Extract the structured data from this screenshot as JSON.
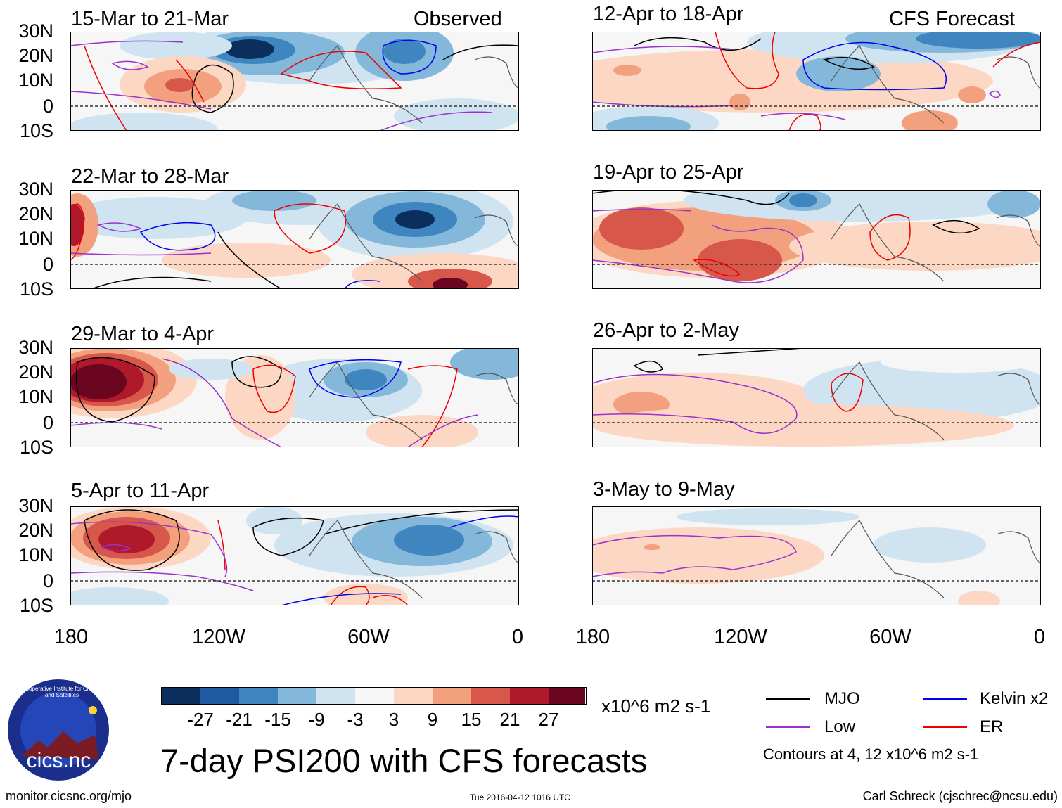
{
  "panels": [
    {
      "title": "15-Mar to 21-Mar",
      "label": "Observed"
    },
    {
      "title": "12-Apr to 18-Apr",
      "label": "CFS Forecast"
    },
    {
      "title": "22-Mar to 28-Mar",
      "label": ""
    },
    {
      "title": "19-Apr to 25-Apr",
      "label": ""
    },
    {
      "title": "29-Mar to 4-Apr",
      "label": ""
    },
    {
      "title": "26-Apr to 2-May",
      "label": ""
    },
    {
      "title": "5-Apr to 11-Apr",
      "label": ""
    },
    {
      "title": "3-May to 9-May",
      "label": ""
    }
  ],
  "lat_labels": [
    "30N",
    "20N",
    "10N",
    "0",
    "10S"
  ],
  "lon_labels": [
    "180",
    "120W",
    "60W",
    "0"
  ],
  "colorbar": {
    "colors": [
      "#0b2e5c",
      "#1f5aa0",
      "#3f86c0",
      "#84b8db",
      "#cfe3f0",
      "#f6f6f6",
      "#fcd8c4",
      "#f2a07e",
      "#d7584a",
      "#b0182b",
      "#6a0620"
    ],
    "ticks": [
      "-27",
      "-21",
      "-15",
      "-9",
      "-3",
      "3",
      "9",
      "15",
      "21",
      "27"
    ],
    "units": "x10^6 m2 s-1"
  },
  "main_title": "7-day PSI200 with CFS forecasts",
  "legend": {
    "items": [
      {
        "label": "MJO",
        "color": "#000000"
      },
      {
        "label": "Kelvin x2",
        "color": "#0000ee"
      },
      {
        "label": "Low",
        "color": "#9a32cd"
      },
      {
        "label": "ER",
        "color": "#ee0000"
      }
    ],
    "note": "Contours at 4, 12 x10^6 m2 s-1"
  },
  "logo": {
    "text": "cics.nc",
    "ring_text": "Cooperative Institute for Climate and Satellites"
  },
  "footer": {
    "url": "monitor.cicsnc.org/mjo",
    "timestamp": "Tue 2016-04-12 1016 UTC",
    "author": "Carl Schreck (cjschrec@ncsu.edu)"
  }
}
